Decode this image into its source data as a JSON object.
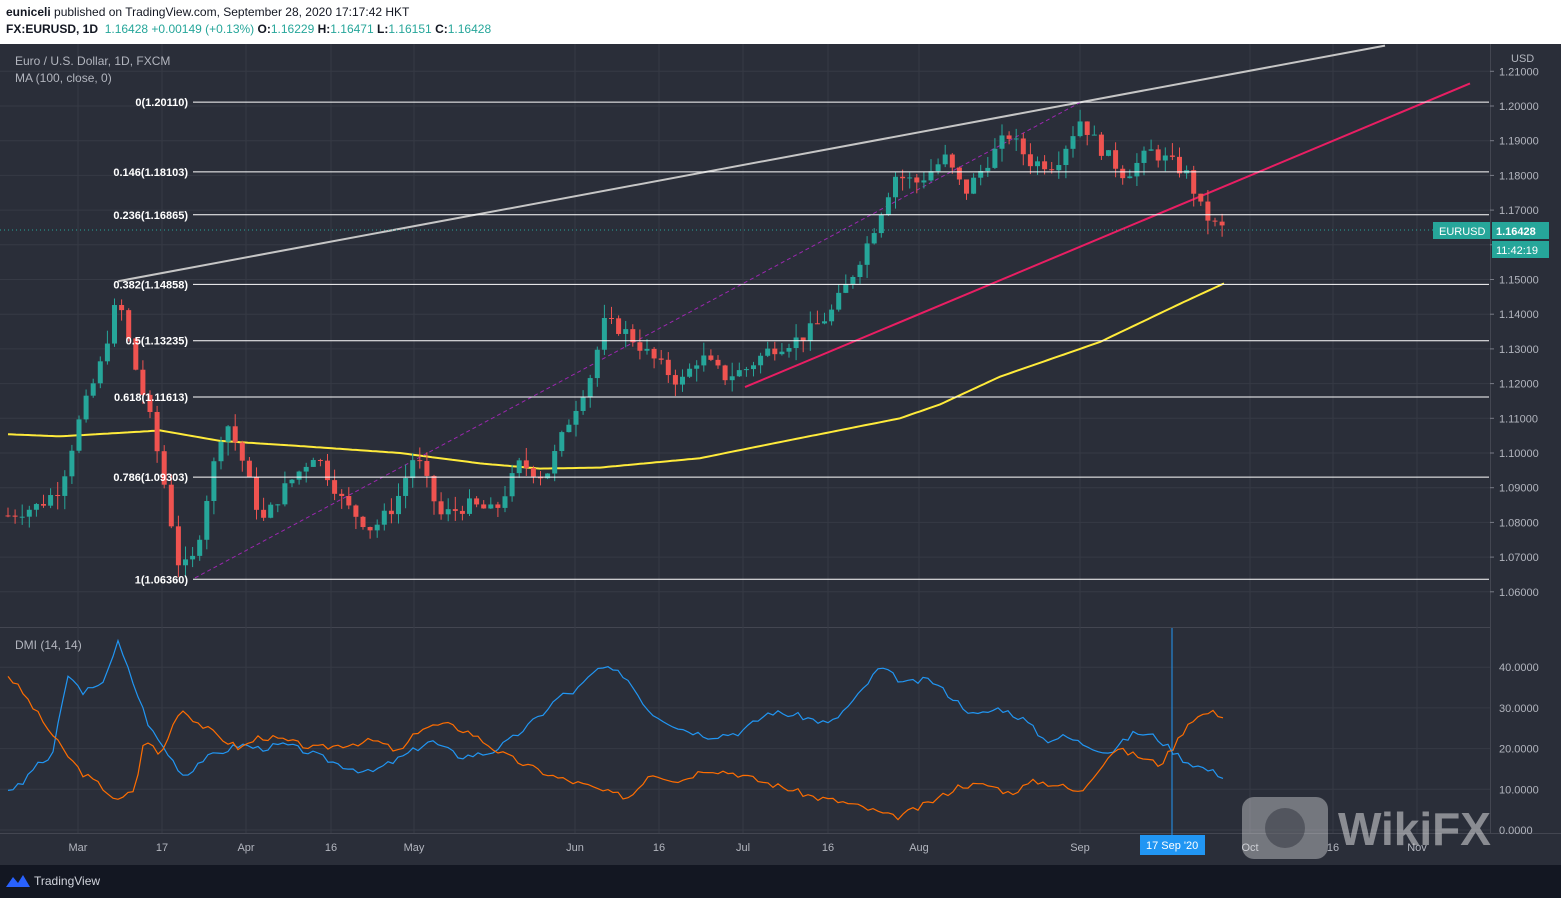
{
  "header": {
    "author": "euniceli",
    "published_text": "published on TradingView.com, September 28, 2020 17:17:42 HKT",
    "symbol": "FX:EURUSD, 1D",
    "last": "1.16428",
    "change": "+0.00149 (+0.13%)",
    "o_label": "O:",
    "o_value": "1.16229",
    "h_label": "H:",
    "h_value": "1.16471",
    "l_label": "L:",
    "l_value": "1.16151",
    "c_label": "C:",
    "c_value": "1.16428"
  },
  "legend": {
    "title": "Euro / U.S. Dollar, 1D, FXCM",
    "ma": "MA (100, close, 0)",
    "dmi": "DMI (14, 14)"
  },
  "price_axis": {
    "currency": "USD",
    "last_tag_symbol": "EURUSD",
    "last_tag_price": "1.16428",
    "countdown": "11:42:19"
  },
  "crosshair_label": "17 Sep '20",
  "footer": {
    "brand": "TradingView"
  },
  "watermark": {
    "text": "WikiFX"
  },
  "colors": {
    "background": "#2a2e39",
    "up": "#26a69a",
    "down": "#ef5350",
    "ma": "#ffeb3b",
    "fib": "#ffffff",
    "upper_trend": "#c6c6c6",
    "lower_trend": "#e91e63",
    "channel": "#9c27b0",
    "plus_di": "#2196f3",
    "minus_di": "#ff6d00",
    "tag": "#26a69a"
  },
  "chart_data": [
    {
      "type": "candlestick",
      "title": "Euro / U.S. Dollar, 1D, FXCM",
      "ylabel": "USD",
      "ylim": [
        1.055,
        1.215
      ],
      "x_ticks": [
        "Mar",
        "17",
        "Apr",
        "16",
        "May",
        "Jun",
        "16",
        "Jul",
        "16",
        "Aug",
        "Sep",
        "17 Sep '20",
        "Oct",
        "16",
        "Nov"
      ],
      "y_ticks": [
        "1.21000",
        "1.20000",
        "1.19000",
        "1.18000",
        "1.17000",
        "1.16000",
        "1.15000",
        "1.14000",
        "1.13000",
        "1.12000",
        "1.11000",
        "1.10000",
        "1.09000",
        "1.08000",
        "1.07000",
        "1.06000"
      ],
      "fibonacci": [
        {
          "label": "0(1.20110)",
          "price": 1.2011
        },
        {
          "label": "0.146(1.18103)",
          "price": 1.18103
        },
        {
          "label": "0.236(1.16865)",
          "price": 1.16865
        },
        {
          "label": "0.382(1.14858)",
          "price": 1.14858
        },
        {
          "label": "0.5(1.13235)",
          "price": 1.13235
        },
        {
          "label": "0.618(1.11613)",
          "price": 1.11613
        },
        {
          "label": "0.786(1.09303)",
          "price": 1.09303
        },
        {
          "label": "1(1.06360)",
          "price": 1.0636
        }
      ],
      "ma_100_anchors": [
        [
          0,
          1.1055
        ],
        [
          60,
          1.1048
        ],
        [
          120,
          1.1058
        ],
        [
          160,
          1.1065
        ],
        [
          220,
          1.1035
        ],
        [
          300,
          1.102
        ],
        [
          400,
          1.1
        ],
        [
          480,
          1.097
        ],
        [
          540,
          1.0955
        ],
        [
          600,
          1.0958
        ],
        [
          700,
          1.0985
        ],
        [
          760,
          1.102
        ],
        [
          830,
          1.106
        ],
        [
          900,
          1.11
        ],
        [
          940,
          1.114
        ],
        [
          1000,
          1.122
        ],
        [
          1100,
          1.132
        ],
        [
          1180,
          1.143
        ],
        [
          1225,
          1.149
        ]
      ],
      "price_anchors": [
        [
          8,
          1.082
        ],
        [
          40,
          1.085
        ],
        [
          60,
          1.09
        ],
        [
          80,
          1.11
        ],
        [
          100,
          1.125
        ],
        [
          118,
          1.145
        ],
        [
          135,
          1.125
        ],
        [
          150,
          1.11
        ],
        [
          165,
          1.09
        ],
        [
          180,
          1.066
        ],
        [
          195,
          1.07
        ],
        [
          210,
          1.092
        ],
        [
          225,
          1.11
        ],
        [
          240,
          1.1
        ],
        [
          262,
          1.08
        ],
        [
          285,
          1.09
        ],
        [
          315,
          1.1
        ],
        [
          345,
          1.085
        ],
        [
          372,
          1.078
        ],
        [
          395,
          1.085
        ],
        [
          415,
          1.1
        ],
        [
          440,
          1.082
        ],
        [
          470,
          1.085
        ],
        [
          495,
          1.083
        ],
        [
          520,
          1.097
        ],
        [
          545,
          1.093
        ],
        [
          570,
          1.11
        ],
        [
          590,
          1.122
        ],
        [
          605,
          1.138
        ],
        [
          625,
          1.135
        ],
        [
          650,
          1.128
        ],
        [
          680,
          1.12
        ],
        [
          700,
          1.128
        ],
        [
          725,
          1.122
        ],
        [
          745,
          1.124
        ],
        [
          770,
          1.13
        ],
        [
          800,
          1.133
        ],
        [
          830,
          1.14
        ],
        [
          850,
          1.15
        ],
        [
          870,
          1.162
        ],
        [
          895,
          1.18
        ],
        [
          918,
          1.178
        ],
        [
          945,
          1.185
        ],
        [
          965,
          1.175
        ],
        [
          985,
          1.183
        ],
        [
          1008,
          1.192
        ],
        [
          1030,
          1.184
        ],
        [
          1055,
          1.183
        ],
        [
          1080,
          1.196
        ],
        [
          1100,
          1.188
        ],
        [
          1125,
          1.18
        ],
        [
          1150,
          1.187
        ],
        [
          1170,
          1.184
        ],
        [
          1188,
          1.18
        ],
        [
          1200,
          1.171
        ],
        [
          1212,
          1.166
        ],
        [
          1226,
          1.1643
        ]
      ],
      "upper_trendline": [
        [
          118,
          1.1495
        ],
        [
          1385,
          1.2174
        ]
      ],
      "lower_trendline": [
        [
          745,
          1.119
        ],
        [
          1470,
          1.2065
        ]
      ],
      "channel_line": [
        [
          195,
          1.064
        ],
        [
          1080,
          1.201
        ]
      ]
    },
    {
      "type": "line",
      "title": "DMI (14, 14)",
      "ylim": [
        0,
        50
      ],
      "y_ticks": [
        "40.0000",
        "30.0000",
        "20.0000",
        "10.0000",
        "0.0000"
      ],
      "series": [
        {
          "anchors": [
            [
              8,
              10
            ],
            [
              22,
              11
            ],
            [
              32,
              15
            ],
            [
              52,
              18
            ],
            [
              68,
              38
            ],
            [
              82,
              34
            ],
            [
              100,
              35
            ],
            [
              118,
              46
            ],
            [
              135,
              35
            ],
            [
              150,
              25
            ],
            [
              170,
              18
            ],
            [
              185,
              13
            ],
            [
              200,
              17
            ],
            [
              220,
              19
            ],
            [
              240,
              21
            ],
            [
              260,
              20
            ],
            [
              285,
              21
            ],
            [
              310,
              19
            ],
            [
              340,
              16
            ],
            [
              370,
              14
            ],
            [
              395,
              17
            ],
            [
              410,
              19
            ],
            [
              430,
              22
            ],
            [
              460,
              18
            ],
            [
              490,
              19
            ],
            [
              510,
              22
            ],
            [
              540,
              28
            ],
            [
              560,
              33
            ],
            [
              575,
              34
            ],
            [
              600,
              40
            ],
            [
              625,
              38
            ],
            [
              650,
              29
            ],
            [
              680,
              25
            ],
            [
              710,
              23
            ],
            [
              740,
              24
            ],
            [
              770,
              29
            ],
            [
              800,
              28
            ],
            [
              830,
              26
            ],
            [
              855,
              32
            ],
            [
              880,
              40
            ],
            [
              905,
              36
            ],
            [
              930,
              37
            ],
            [
              950,
              33
            ],
            [
              975,
              28
            ],
            [
              1000,
              30
            ],
            [
              1025,
              27
            ],
            [
              1045,
              22
            ],
            [
              1065,
              23
            ],
            [
              1085,
              21
            ],
            [
              1110,
              19
            ],
            [
              1135,
              24
            ],
            [
              1155,
              23
            ],
            [
              1170,
              20
            ],
            [
              1185,
              17
            ],
            [
              1205,
              15
            ],
            [
              1226,
              13
            ]
          ]
        },
        {
          "anchors": [
            [
              8,
              38
            ],
            [
              22,
              34
            ],
            [
              42,
              27
            ],
            [
              62,
              20
            ],
            [
              82,
              14
            ],
            [
              100,
              11
            ],
            [
              118,
              7
            ],
            [
              135,
              10
            ],
            [
              145,
              23
            ],
            [
              160,
              18
            ],
            [
              180,
              30
            ],
            [
              200,
              26
            ],
            [
              225,
              22
            ],
            [
              240,
              20
            ],
            [
              260,
              23
            ],
            [
              285,
              22
            ],
            [
              315,
              20
            ],
            [
              345,
              21
            ],
            [
              375,
              22
            ],
            [
              400,
              19
            ],
            [
              420,
              25
            ],
            [
              445,
              26
            ],
            [
              470,
              24
            ],
            [
              500,
              19
            ],
            [
              525,
              16
            ],
            [
              555,
              13
            ],
            [
              585,
              11
            ],
            [
              610,
              9
            ],
            [
              630,
              8
            ],
            [
              650,
              14
            ],
            [
              680,
              12
            ],
            [
              705,
              15
            ],
            [
              735,
              14
            ],
            [
              760,
              12
            ],
            [
              790,
              10
            ],
            [
              815,
              8
            ],
            [
              840,
              7
            ],
            [
              870,
              5
            ],
            [
              895,
              3
            ],
            [
              915,
              5
            ],
            [
              940,
              8
            ],
            [
              960,
              11
            ],
            [
              990,
              11
            ],
            [
              1010,
              9
            ],
            [
              1035,
              12
            ],
            [
              1060,
              11
            ],
            [
              1080,
              9
            ],
            [
              1095,
              14
            ],
            [
              1115,
              20
            ],
            [
              1140,
              18
            ],
            [
              1160,
              16
            ],
            [
              1175,
              21
            ],
            [
              1190,
              27
            ],
            [
              1210,
              29
            ],
            [
              1226,
              28
            ]
          ]
        }
      ]
    }
  ]
}
